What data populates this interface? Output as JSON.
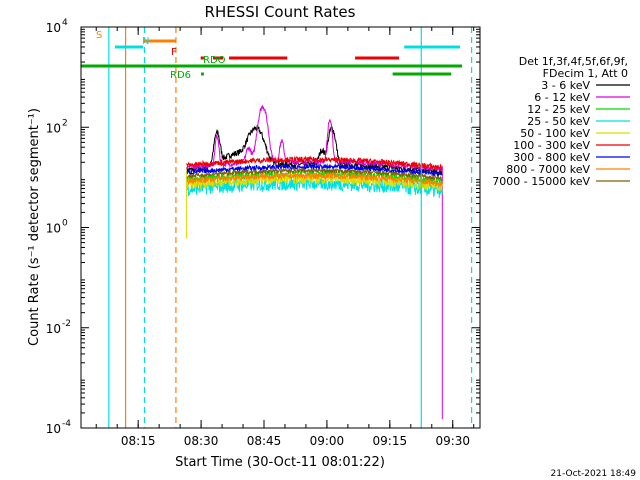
{
  "chart_data": {
    "type": "line",
    "title": "RHESSI Count Rates",
    "xlabel": "Start Time (30-Oct-11 08:01:22)",
    "ylabel": "Count Rate (s⁻¹ detector segment⁻¹)",
    "yscale": "log",
    "xlim": [
      "08:01:22",
      "09:36:30"
    ],
    "ylim": [
      0.0001,
      10000
    ],
    "x_ticks": [
      "08:15",
      "08:30",
      "08:45",
      "09:00",
      "09:15",
      "09:30"
    ],
    "y_ticks": [
      {
        "value": 0.0001,
        "base": "10",
        "exp": "-4"
      },
      {
        "value": 0.01,
        "base": "10",
        "exp": "-2"
      },
      {
        "value": 1,
        "base": "10",
        "exp": "0"
      },
      {
        "value": 100,
        "base": "10",
        "exp": "2"
      },
      {
        "value": 10000,
        "base": "10",
        "exp": "4"
      }
    ],
    "legend_placement": "right",
    "legend_header": [
      "Det 1f,3f,4f,5f,6f,9f,",
      "FDecim 1, Att 0"
    ],
    "series": [
      {
        "name": "3 - 6 keV",
        "color": "#000000",
        "base": 14,
        "peaks": [
          [
            8.05,
            5.2,
            0.8
          ],
          [
            11.2,
            1.6,
            1.2
          ],
          [
            12.0,
            6.0,
            2.0
          ],
          [
            10.3,
            2.0,
            5.0
          ],
          [
            19.5,
            6.6,
            1.0
          ],
          [
            18.5,
            2.2,
            0.8
          ]
        ],
        "x_start": 5.0,
        "x_end": 30.2,
        "noise": 0.06
      },
      {
        "name": "6 - 12 keV",
        "color": "#dd00dd",
        "base": 16,
        "peaks": [
          [
            8.05,
            4.2,
            0.5
          ],
          [
            11.2,
            2.2,
            0.8
          ],
          [
            12.6,
            16.0,
            1.2
          ],
          [
            14.5,
            3.0,
            0.6
          ],
          [
            19.3,
            8.5,
            0.6
          ]
        ],
        "x_start": 5.0,
        "x_end": 29.8,
        "noise": 0.05,
        "drop_to": 0.00015
      },
      {
        "name": "12 - 25 keV",
        "color": "#00dd00",
        "base": 9,
        "peaks": [],
        "x_start": 5.0,
        "x_end": 30.2,
        "noise": 0.08
      },
      {
        "name": "25 - 50 keV",
        "color": "#00e0e0",
        "base": 5.8,
        "peaks": [],
        "x_start": 5.0,
        "x_end": 30.2,
        "noise": 0.14
      },
      {
        "name": "50 - 100 keV",
        "color": "#dddd00",
        "base": 7.2,
        "peaks": [],
        "x_start": 5.0,
        "x_end": 30.2,
        "noise": 0.1
      },
      {
        "name": "100 - 300 keV",
        "color": "#ee0000",
        "base": 17.5,
        "peaks": [],
        "x_start": 5.0,
        "x_end": 30.5,
        "noise": 0.05
      },
      {
        "name": "300 - 800 keV",
        "color": "#0000ee",
        "base": 12.5,
        "peaks": [],
        "x_start": 5.0,
        "x_end": 30.5,
        "noise": 0.05
      },
      {
        "name": "800 - 7000 keV",
        "color": "#ff8000",
        "base": 8.3,
        "peaks": [],
        "x_start": 5.0,
        "x_end": 30.5,
        "noise": 0.06
      },
      {
        "name": "7000 - 15000 keV",
        "color": "#806000",
        "base": 10.5,
        "peaks": [],
        "x_start": 5.0,
        "x_end": 30.5,
        "noise": 0.04
      }
    ],
    "flags": [
      {
        "label": "S",
        "color": "#ff8000",
        "segments": [
          [
            15.7,
            23.7
          ]
        ]
      },
      {
        "label": "N",
        "color": "#00e0e0",
        "segments": [
          [
            8.5,
            15.6
          ],
          [
            81.0,
            95.0
          ]
        ]
      },
      {
        "label": "F",
        "color": "#ee0000",
        "segments": [
          [
            30.0,
            30.8
          ],
          [
            33.1,
            35.6
          ],
          [
            37.1,
            51.7
          ],
          [
            68.7,
            79.7
          ]
        ]
      },
      {
        "label": "RDO",
        "color": "#00aa00",
        "segments": [
          [
            7.0,
            95.5
          ]
        ]
      },
      {
        "label": "RD6",
        "color": "#00aa00",
        "segments": [
          [
            30.1,
            30.8
          ],
          [
            78.1,
            92.8
          ]
        ]
      }
    ],
    "vlines": [
      {
        "time": "08:08:00",
        "color": "#00e0e0",
        "style": "solid"
      },
      {
        "time": "08:12:00",
        "color": "#ff8000",
        "style": "solid"
      },
      {
        "time": "08:16:30",
        "color": "#00e0e0",
        "style": "dashed"
      },
      {
        "time": "08:24:00",
        "color": "#ff8000",
        "style": "dashed"
      },
      {
        "time": "09:22:30",
        "color": "#00e0e0",
        "style": "solid"
      },
      {
        "time": "09:34:30",
        "color": "#00e0e0",
        "style": "dashed"
      }
    ]
  },
  "footer": {
    "timestamp": "21-Oct-2021 18:49"
  }
}
